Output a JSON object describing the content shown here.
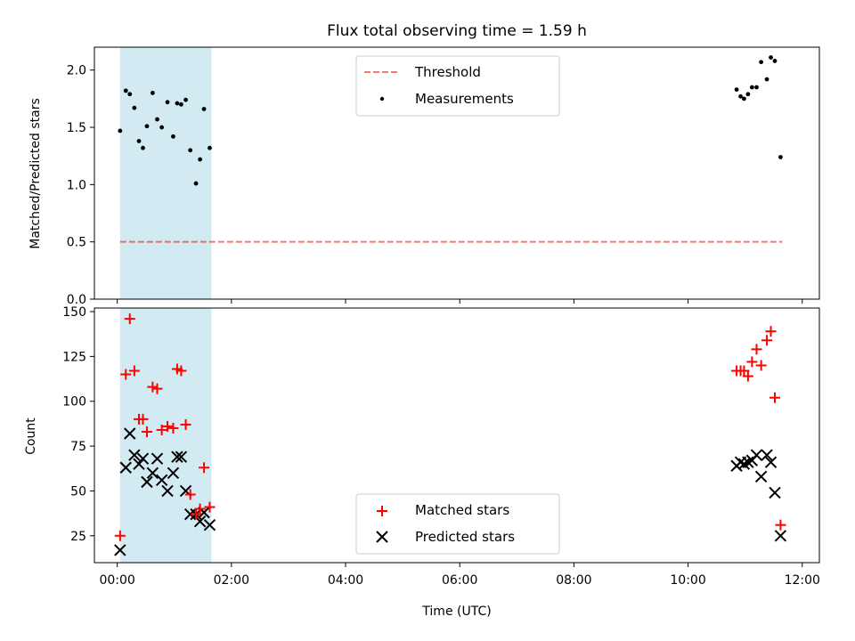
{
  "figure": {
    "title": "Flux total observing time = 1.59 h",
    "xlabel": "Time (UTC)"
  },
  "colors": {
    "shade": "#add8e6",
    "threshold": "#ff0000",
    "measurements": "#000000",
    "matched": "#ff0000",
    "predicted": "#000000"
  },
  "chart_data": [
    {
      "type": "scatter",
      "panel": "top",
      "title": "Flux total observing time = 1.59 h",
      "xlabel": "",
      "ylabel": "Matched/Predicted stars",
      "x_unit": "hours UTC",
      "xlim": [
        -0.4,
        12.3
      ],
      "ylim": [
        0,
        2.2
      ],
      "yticks": [
        0,
        0.5,
        1.0,
        1.5,
        2.0
      ],
      "ytick_labels": [
        "0.0",
        "0.5",
        "1.0",
        "1.5",
        "2.0"
      ],
      "xticks": [
        0,
        2,
        4,
        6,
        8,
        10,
        12
      ],
      "legend_position": "upper center",
      "shaded_span": [
        0.05,
        1.65
      ],
      "threshold": {
        "name": "Threshold",
        "y": 0.5,
        "x_range": [
          0.05,
          11.65
        ],
        "style": "dashed"
      },
      "series": [
        {
          "name": "Measurements",
          "marker": "dot",
          "x": [
            0.05,
            0.15,
            0.22,
            0.3,
            0.38,
            0.45,
            0.52,
            0.62,
            0.7,
            0.78,
            0.88,
            0.98,
            1.05,
            1.12,
            1.2,
            1.28,
            1.38,
            1.45,
            1.52,
            1.62,
            10.85,
            10.92,
            10.98,
            11.05,
            11.12,
            11.2,
            11.28,
            11.38,
            11.45,
            11.52,
            11.62
          ],
          "y": [
            1.47,
            1.82,
            1.79,
            1.67,
            1.38,
            1.32,
            1.51,
            1.8,
            1.57,
            1.5,
            1.72,
            1.42,
            1.71,
            1.7,
            1.74,
            1.3,
            1.01,
            1.22,
            1.66,
            1.32,
            1.83,
            1.77,
            1.75,
            1.79,
            1.85,
            1.85,
            2.07,
            1.92,
            2.11,
            2.08,
            1.24
          ]
        }
      ]
    },
    {
      "type": "scatter",
      "panel": "bottom",
      "xlabel": "Time (UTC)",
      "ylabel": "Count",
      "x_unit": "hours UTC",
      "xlim": [
        -0.4,
        12.3
      ],
      "ylim": [
        10,
        152
      ],
      "yticks": [
        25,
        50,
        75,
        100,
        125,
        150
      ],
      "xticks": [
        0,
        2,
        4,
        6,
        8,
        10,
        12
      ],
      "xtick_labels": [
        "00:00",
        "02:00",
        "04:00",
        "06:00",
        "08:00",
        "10:00",
        "12:00"
      ],
      "legend_position": "lower center",
      "shaded_span": [
        0.05,
        1.65
      ],
      "series": [
        {
          "name": "Matched stars",
          "marker": "+",
          "x": [
            0.05,
            0.15,
            0.22,
            0.3,
            0.38,
            0.45,
            0.52,
            0.62,
            0.7,
            0.78,
            0.88,
            0.98,
            1.05,
            1.12,
            1.2,
            1.28,
            1.38,
            1.45,
            1.52,
            1.62,
            10.85,
            10.92,
            10.98,
            11.05,
            11.12,
            11.2,
            11.28,
            11.38,
            11.45,
            11.52,
            11.62
          ],
          "y": [
            25,
            115,
            146,
            117,
            90,
            90,
            83,
            108,
            107,
            84,
            86,
            85,
            118,
            117,
            87,
            48,
            37,
            40,
            63,
            41,
            117,
            117,
            117,
            114,
            122,
            129,
            120,
            134,
            139,
            102,
            31
          ]
        },
        {
          "name": "Predicted stars",
          "marker": "x",
          "x": [
            0.05,
            0.15,
            0.22,
            0.3,
            0.38,
            0.45,
            0.52,
            0.62,
            0.7,
            0.78,
            0.88,
            0.98,
            1.05,
            1.12,
            1.2,
            1.28,
            1.38,
            1.45,
            1.52,
            1.62,
            10.85,
            10.92,
            10.98,
            11.05,
            11.12,
            11.2,
            11.28,
            11.38,
            11.45,
            11.52,
            11.62
          ],
          "y": [
            17,
            63,
            82,
            70,
            65,
            68,
            55,
            60,
            68,
            56,
            50,
            60,
            69,
            69,
            50,
            37,
            37,
            33,
            38,
            31,
            64,
            66,
            65,
            66,
            67,
            70,
            58,
            70,
            66,
            49,
            25
          ]
        }
      ]
    }
  ]
}
